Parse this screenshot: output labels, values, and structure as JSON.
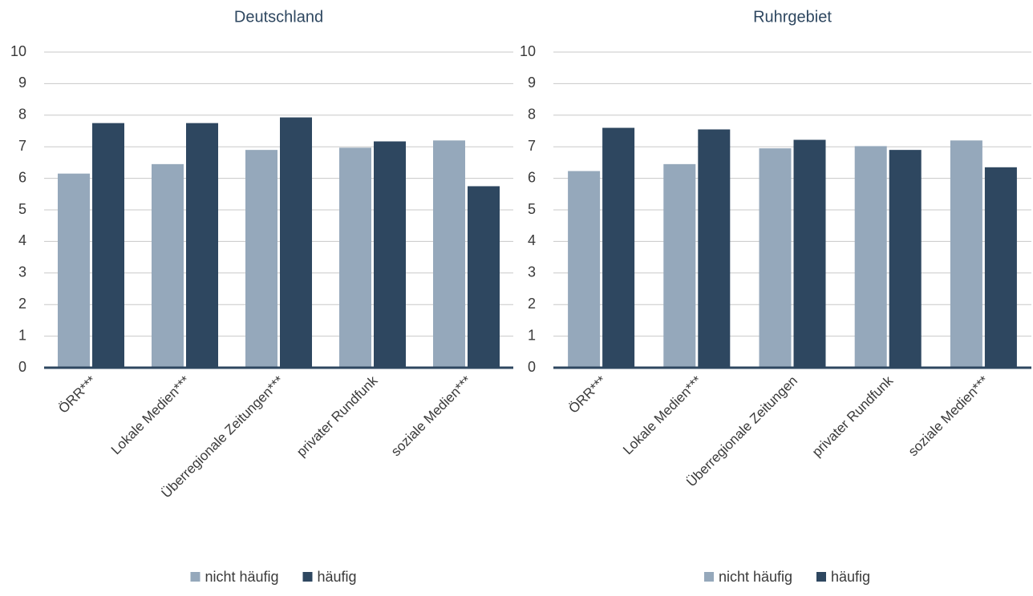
{
  "chart_data": [
    {
      "type": "bar",
      "title": "Deutschland",
      "categories": [
        "ÖRR***",
        "Lokale Medien***",
        "Überregionale Zeitungen***",
        "privater Rundfunk",
        "soziale Medien***"
      ],
      "series": [
        {
          "name": "nicht häufig",
          "color": "#95a8bb",
          "values": [
            6.15,
            6.45,
            6.9,
            6.97,
            7.2
          ]
        },
        {
          "name": "häufig",
          "color": "#2e4760",
          "values": [
            7.75,
            7.75,
            7.93,
            7.17,
            5.75
          ]
        }
      ],
      "ylim": [
        0,
        10
      ],
      "yticks": [
        0,
        1,
        2,
        3,
        4,
        5,
        6,
        7,
        8,
        9,
        10
      ],
      "grid": true,
      "legend": "bottom"
    },
    {
      "type": "bar",
      "title": "Ruhrgebiet",
      "categories": [
        "ÖRR***",
        "Lokale Medien***",
        "Überregionale Zeitungen",
        "privater Rundfunk",
        "soziale Medien***"
      ],
      "series": [
        {
          "name": "nicht häufig",
          "color": "#95a8bb",
          "values": [
            6.23,
            6.45,
            6.95,
            7.02,
            7.2
          ]
        },
        {
          "name": "häufig",
          "color": "#2e4760",
          "values": [
            7.6,
            7.55,
            7.22,
            6.9,
            6.35
          ]
        }
      ],
      "ylim": [
        0,
        10
      ],
      "yticks": [
        0,
        1,
        2,
        3,
        4,
        5,
        6,
        7,
        8,
        9,
        10
      ],
      "grid": true,
      "legend": "bottom"
    }
  ]
}
